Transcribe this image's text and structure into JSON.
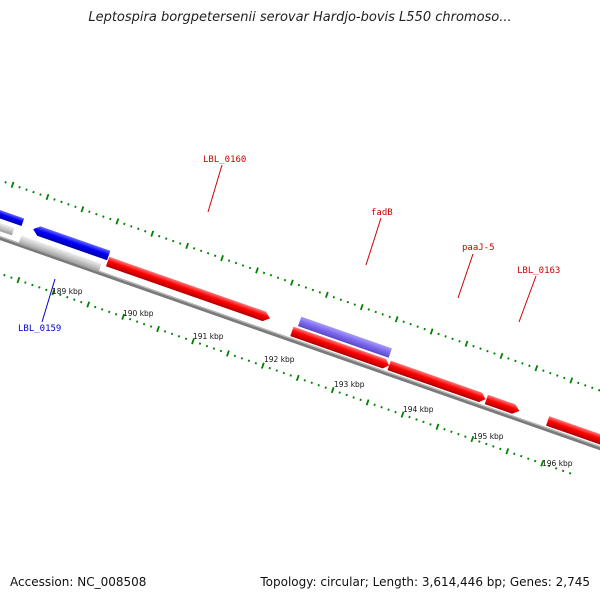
{
  "title": "Leptospira borgpetersenii serovar Hardjo-bovis L550 chromoso...",
  "footer": {
    "accession": "Accession: NC_008508",
    "summary": "Topology: circular; Length: 3,614,446 bp; Genes: 2,745"
  },
  "colors": {
    "forward_gene": "#ff0000",
    "reverse_gene": "#0000ff",
    "pseudo_gene": "#c8c8c8",
    "feature_purple": "#7b68ee",
    "backbone": "#808080",
    "ticks": "#008000",
    "label_red": "#cc0000",
    "label_blue": "#0000cc"
  },
  "kbp_labels": [
    "189 kbp",
    "190 kbp",
    "191 kbp",
    "192 kbp",
    "193 kbp",
    "194 kbp",
    "195 kbp",
    "196 kbp"
  ],
  "gene_labels": [
    {
      "id": "lbl-0159",
      "text": "LBL_0159",
      "color": "#0000cc"
    },
    {
      "id": "lbl-0160",
      "text": "LBL_0160",
      "color": "#cc0000"
    },
    {
      "id": "fadb",
      "text": "fadB",
      "color": "#cc0000"
    },
    {
      "id": "paaj-5",
      "text": "paaJ-5",
      "color": "#cc0000"
    },
    {
      "id": "lbl-0163",
      "text": "LBL_0163",
      "color": "#cc0000"
    }
  ]
}
